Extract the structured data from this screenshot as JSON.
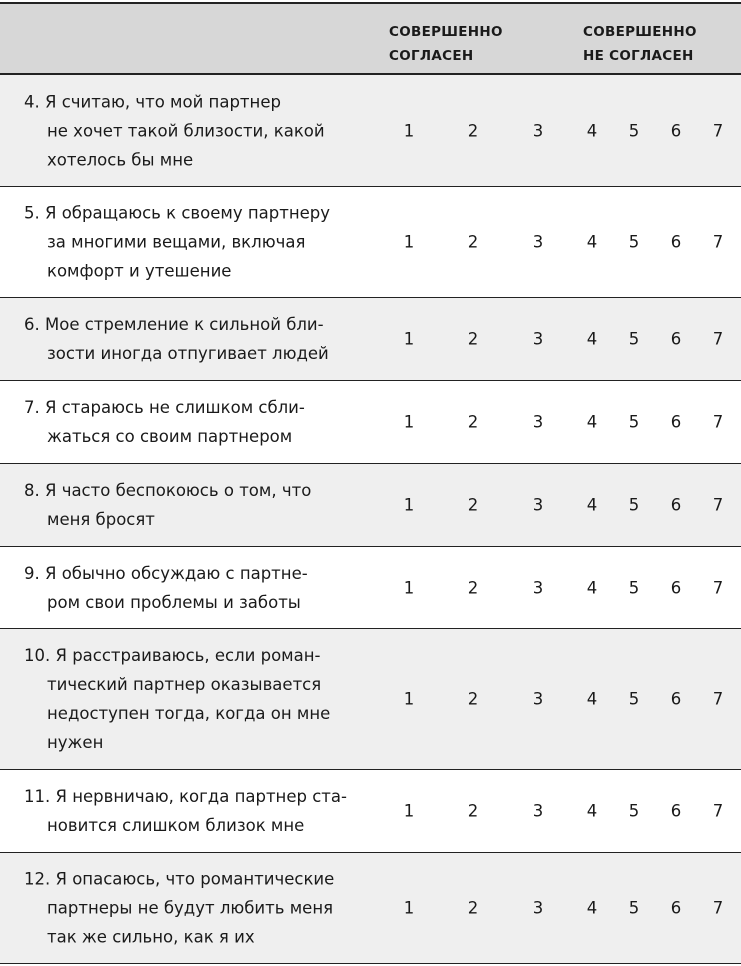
{
  "header": {
    "col_agree": [
      "СОВЕРШЕННО",
      "СОГЛАСЕН"
    ],
    "col_disagree": [
      "СОВЕРШЕННО",
      "НЕ СОГЛАСЕН"
    ]
  },
  "scale": [
    "1",
    "2",
    "3",
    "4",
    "5",
    "6",
    "7"
  ],
  "rows": [
    {
      "lines": [
        "4. Я считаю, что мой партнер",
        "не хочет такой близости, какой",
        "хотелось бы мне"
      ]
    },
    {
      "lines": [
        "5. Я обращаюсь к своему партнеру",
        "за многими вещами, включая",
        "комфорт и утешение"
      ]
    },
    {
      "lines": [
        "6. Мое стремление к сильной бли-",
        "зости иногда отпугивает людей"
      ]
    },
    {
      "lines": [
        "7. Я стараюсь не слишком сбли-",
        "жаться со своим партнером"
      ]
    },
    {
      "lines": [
        "8. Я часто беспокоюсь о том, что",
        "меня бросят"
      ]
    },
    {
      "lines": [
        "9. Я обычно обсуждаю с партне-",
        "ром свои проблемы и заботы"
      ]
    },
    {
      "lines": [
        "10. Я расстраиваюсь, если роман-",
        "тический партнер оказывается",
        "недоступен тогда, когда он мне",
        "нужен"
      ]
    },
    {
      "lines": [
        "11. Я нервничаю, когда партнер ста-",
        "новится слишком близок мне"
      ]
    },
    {
      "lines": [
        "12. Я опасаюсь, что романтические",
        "партнеры не будут любить меня",
        "так же сильно, как я их"
      ]
    }
  ]
}
